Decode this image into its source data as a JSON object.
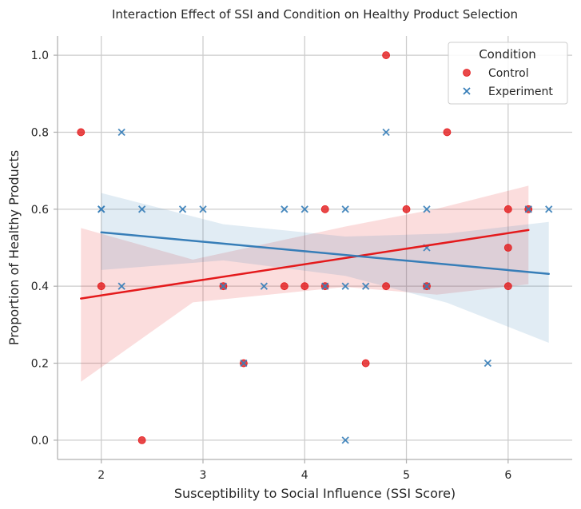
{
  "chart_data": {
    "type": "scatter",
    "title": "Interaction Effect of SSI and Condition on Healthy Product Selection",
    "xlabel": "Susceptibility to Social Influence (SSI Score)",
    "ylabel": "Proportion of Healthy Products",
    "xlim": [
      1.57,
      6.63
    ],
    "ylim": [
      -0.05,
      1.05
    ],
    "xticks": [
      2,
      3,
      4,
      5,
      6
    ],
    "yticks": [
      0.0,
      0.2,
      0.4,
      0.6,
      0.8,
      1.0
    ],
    "xtick_labels": [
      "2",
      "3",
      "4",
      "5",
      "6"
    ],
    "ytick_labels": [
      "0.0",
      "0.2",
      "0.4",
      "0.6",
      "0.8",
      "1.0"
    ],
    "grid": true,
    "legend": {
      "title": "Condition",
      "position": "top-right"
    },
    "series": [
      {
        "name": "Control",
        "marker": "circle",
        "color": "#e41a1c",
        "x": [
          1.8,
          2.0,
          2.4,
          3.2,
          3.4,
          3.8,
          4.0,
          4.2,
          4.2,
          4.6,
          4.8,
          4.8,
          5.0,
          5.2,
          5.4,
          6.0,
          6.0,
          6.0,
          6.2
        ],
        "y": [
          0.8,
          0.4,
          0.0,
          0.4,
          0.2,
          0.4,
          0.4,
          0.4,
          0.6,
          0.2,
          0.4,
          1.0,
          0.6,
          0.4,
          0.8,
          0.6,
          0.5,
          0.4,
          0.6
        ],
        "fit": {
          "x": [
            1.8,
            6.2
          ],
          "y": [
            0.368,
            0.546
          ]
        },
        "ci_upper": [
          0.551,
          0.469,
          0.555,
          0.601,
          0.661
        ],
        "ci_lower": [
          0.152,
          0.358,
          0.398,
          0.378,
          0.405
        ],
        "ci_x": [
          1.8,
          2.9,
          4.4,
          5.3,
          6.2
        ]
      },
      {
        "name": "Experiment",
        "marker": "x",
        "color": "#377eb8",
        "x": [
          2.0,
          2.0,
          2.2,
          2.2,
          2.4,
          2.8,
          3.0,
          3.2,
          3.4,
          3.6,
          3.8,
          4.0,
          4.2,
          4.4,
          4.4,
          4.4,
          4.6,
          4.8,
          5.2,
          5.2,
          5.2,
          5.8,
          6.2,
          6.4
        ],
        "y": [
          0.6,
          0.6,
          0.8,
          0.4,
          0.6,
          0.6,
          0.6,
          0.4,
          0.2,
          0.4,
          0.6,
          0.6,
          0.4,
          0.6,
          0.4,
          0.0,
          0.4,
          0.8,
          0.6,
          0.5,
          0.4,
          0.2,
          0.6,
          0.6
        ],
        "fit": {
          "x": [
            2.0,
            6.4
          ],
          "y": [
            0.54,
            0.432
          ]
        },
        "ci_upper": [
          0.642,
          0.561,
          0.529,
          0.537,
          0.567
        ],
        "ci_lower": [
          0.442,
          0.467,
          0.427,
          0.357,
          0.253
        ],
        "ci_x": [
          2.0,
          3.2,
          4.4,
          5.4,
          6.4
        ]
      }
    ]
  }
}
